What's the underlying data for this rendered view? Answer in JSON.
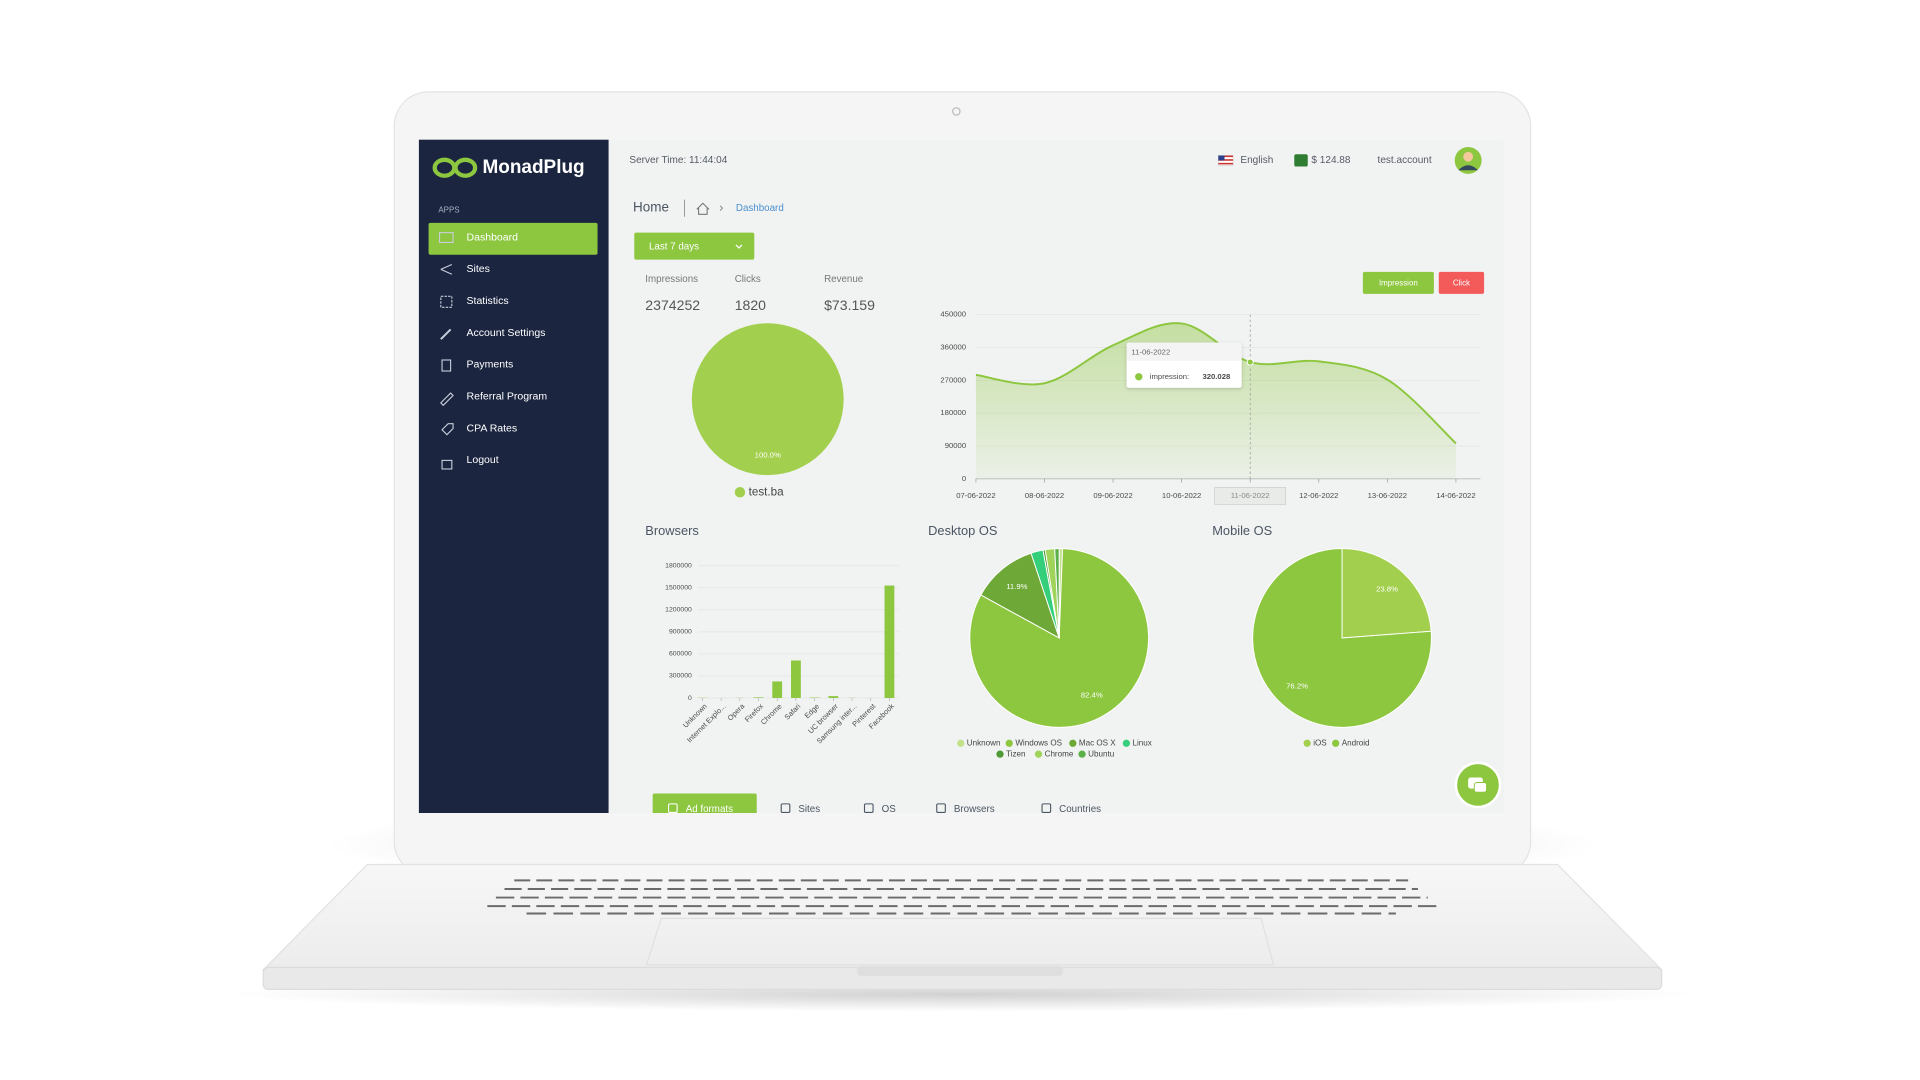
{
  "header": {
    "logo": "MonadPlug",
    "server_time": "Server Time: 11:44:04",
    "language": "English",
    "balance": "$ 124.88",
    "account": "test.account"
  },
  "sidebar": {
    "section": "APPS",
    "items": [
      "Dashboard",
      "Sites",
      "Statistics",
      "Account Settings",
      "Payments",
      "Referral Program",
      "CPA Rates",
      "Logout"
    ],
    "active": 0
  },
  "breadcrumb": {
    "home": "Home",
    "current": "Dashboard"
  },
  "filter": "Last 7 days",
  "stats": [
    {
      "label": "Impressions",
      "value": 2374252
    },
    {
      "label": "Clicks",
      "value": 1820
    },
    {
      "label": "Revenue",
      "value": "$73.159"
    }
  ],
  "chart_data": [
    {
      "type": "pie",
      "categories": [
        "test.ba"
      ],
      "values": [
        100
      ],
      "value_labels": [
        "100.0%"
      ],
      "colors": [
        "#a3cf4e"
      ]
    },
    {
      "type": "line",
      "categories": [
        "07-06-2022",
        "08-06-2022",
        "09-06-2022",
        "10-06-2022",
        "11-06-2022",
        "12-06-2022",
        "13-06-2022",
        "14-06-2022"
      ],
      "series": [
        {
          "name": "Impression",
          "color": "#8dc63f",
          "values": [
            285000,
            262000,
            366000,
            426000,
            320028,
            322000,
            272000,
            97000
          ]
        }
      ],
      "click_button": {
        "label": "Click",
        "color": "#f35b5b"
      },
      "ylim": [
        0,
        450000
      ],
      "yticks": [
        0,
        90000,
        180000,
        270000,
        360000,
        450000
      ],
      "grid": true,
      "tooltip": {
        "title": "11-06-2022",
        "label": "impression:",
        "value_label": "320.028"
      }
    },
    {
      "type": "bar",
      "title": "Browsers",
      "categories": [
        "Unknown",
        "Internet Explo...",
        "Opera",
        "Firefox",
        "Chrome",
        "Safari",
        "Edge",
        "UC browser",
        "Samsung inter...",
        "Pinterest",
        "Facebook"
      ],
      "values": [
        3000,
        1000,
        2000,
        8000,
        225000,
        510000,
        6000,
        25000,
        2000,
        1000,
        1530000
      ],
      "color": "#8dc63f",
      "ylim": [
        0,
        1800000
      ],
      "yticks": [
        0,
        300000,
        600000,
        900000,
        1200000,
        1500000,
        1800000
      ],
      "grid": true
    },
    {
      "type": "pie",
      "title": "Desktop OS",
      "categories": [
        "Unknown",
        "Windows OS",
        "Mac OS X",
        "Linux",
        "Tizen",
        "Chrome",
        "Ubuntu"
      ],
      "values": [
        0.6,
        82.4,
        11.9,
        2.2,
        0.4,
        1.7,
        0.8
      ],
      "value_labels": [
        null,
        "82.4%",
        "11.9%",
        null,
        null,
        null,
        null
      ],
      "colors": [
        "#c3e08a",
        "#8dc63f",
        "#6ea836",
        "#35cf7c",
        "#4f9a36",
        "#9fd35a",
        "#5bb04a"
      ]
    },
    {
      "type": "pie",
      "title": "Mobile OS",
      "categories": [
        "iOS",
        "Android"
      ],
      "values": [
        23.8,
        76.2
      ],
      "value_labels": [
        "23.8%",
        "76.2%"
      ],
      "colors": [
        "#a3cf4e",
        "#8dc63f"
      ]
    }
  ],
  "tabs": [
    "Ad formats",
    "Sites",
    "OS",
    "Browsers",
    "Countries"
  ],
  "active_tab": 0
}
